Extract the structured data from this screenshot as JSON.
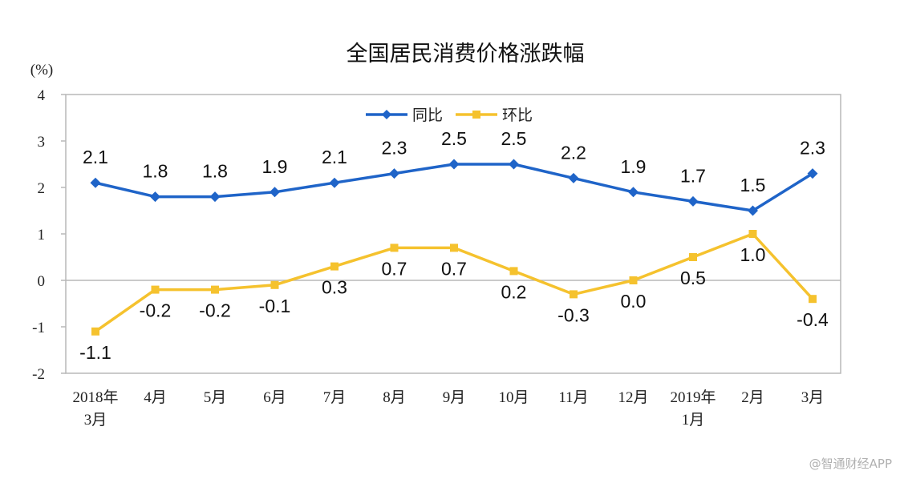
{
  "watermark": "@智通财经APP",
  "chart_data": {
    "type": "line",
    "title": "全国居民消费价格涨跌幅",
    "unit": "(%)",
    "ylim": [
      -2,
      4
    ],
    "yticks": [
      "4",
      "3",
      "2",
      "1",
      "0",
      "-1",
      "-2"
    ],
    "grid": false,
    "legend_position": "top-center",
    "categories": [
      [
        "2018年",
        "3月"
      ],
      [
        "4月"
      ],
      [
        "5月"
      ],
      [
        "6月"
      ],
      [
        "7月"
      ],
      [
        "8月"
      ],
      [
        "9月"
      ],
      [
        "10月"
      ],
      [
        "11月"
      ],
      [
        "12月"
      ],
      [
        "2019年",
        "1月"
      ],
      [
        "2月"
      ],
      [
        "3月"
      ]
    ],
    "series": [
      {
        "name": "同比",
        "color": "#1f64c8",
        "marker": "diamond",
        "values": [
          2.1,
          1.8,
          1.8,
          1.9,
          2.1,
          2.3,
          2.5,
          2.5,
          2.2,
          1.9,
          1.7,
          1.5,
          2.3
        ],
        "labels": [
          "2.1",
          "1.8",
          "1.8",
          "1.9",
          "2.1",
          "2.3",
          "2.5",
          "2.5",
          "2.2",
          "1.9",
          "1.7",
          "1.5",
          "2.3"
        ]
      },
      {
        "name": "环比",
        "color": "#f5c22e",
        "marker": "square",
        "values": [
          -1.1,
          -0.2,
          -0.2,
          -0.1,
          0.3,
          0.7,
          0.7,
          0.2,
          -0.3,
          0.0,
          0.5,
          1.0,
          -0.4
        ],
        "labels": [
          "-1.1",
          "-0.2",
          "-0.2",
          "-0.1",
          "0.3",
          "0.7",
          "0.7",
          "0.2",
          "-0.3",
          "0.0",
          "0.5",
          "1.0",
          "-0.4"
        ]
      }
    ]
  }
}
